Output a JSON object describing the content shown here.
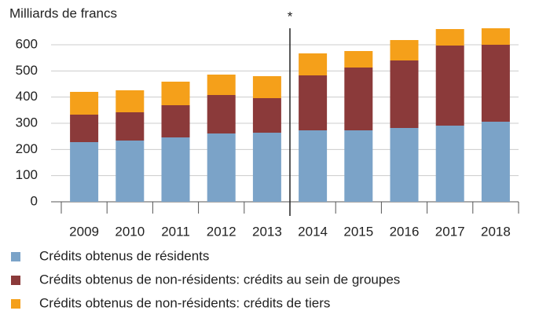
{
  "chart_data": {
    "type": "stacked_bar",
    "y_axis_label": "Milliards de francs",
    "annotation": "*",
    "categories": [
      "2009",
      "2010",
      "2011",
      "2012",
      "2013",
      "2014",
      "2015",
      "2016",
      "2017",
      "2018"
    ],
    "series": [
      {
        "name": "Crédits obtenus de résidents",
        "color": "#7ba3c8",
        "values": [
          228,
          234,
          246,
          261,
          264,
          273,
          273,
          282,
          291,
          306
        ]
      },
      {
        "name": "Crédits obtenus de non-résidents: crédits au sein de groupes",
        "color": "#8b3a3a",
        "values": [
          105,
          108,
          123,
          147,
          132,
          210,
          240,
          258,
          306,
          294
        ]
      },
      {
        "name": "Crédits obtenus de non-résidents: crédits de tiers",
        "color": "#f5a01a",
        "values": [
          87,
          84,
          90,
          78,
          84,
          84,
          63,
          78,
          63,
          63
        ]
      }
    ],
    "ylim": [
      0,
      663
    ],
    "yticks": [
      0,
      100,
      200,
      300,
      400,
      500,
      600
    ],
    "grid": true
  }
}
